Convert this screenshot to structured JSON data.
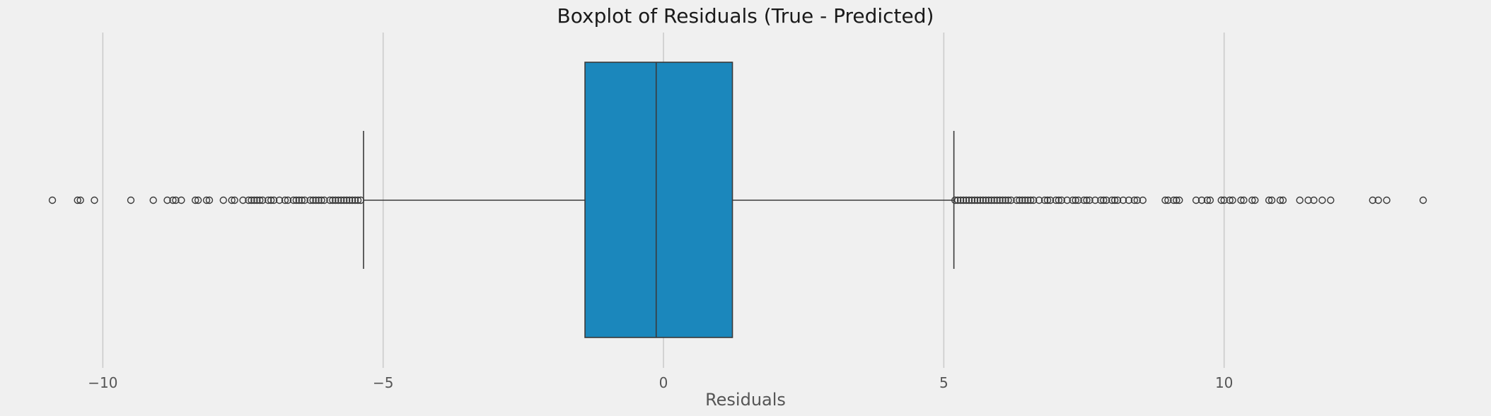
{
  "chart_data": {
    "type": "boxplot",
    "title": "Boxplot of Residuals (True - Predicted)",
    "xlabel": "Residuals",
    "ylabel": "",
    "xlim": [
      -10.85,
      13.65
    ],
    "xticks": [
      -10,
      -5,
      0,
      5,
      10
    ],
    "tick_labels": [
      "−10",
      "−5",
      "0",
      "5",
      "10"
    ],
    "grid": true,
    "colors": {
      "box_fill": "#1b87bc",
      "edge": "#3a3a3a",
      "grid": "#cbcbcb",
      "background": "#f0f0f0"
    },
    "box": {
      "q1": -1.4,
      "median": -0.13,
      "q3": 1.23,
      "whisker_low": -5.35,
      "whisker_high": 5.18
    },
    "outliers_low": [
      -10.9,
      -10.45,
      -10.4,
      -10.15,
      -9.5,
      -9.1,
      -8.85,
      -8.75,
      -8.7,
      -8.6,
      -8.35,
      -8.3,
      -8.15,
      -8.1,
      -7.85,
      -7.7,
      -7.65,
      -7.5,
      -7.4,
      -7.35,
      -7.3,
      -7.25,
      -7.2,
      -7.15,
      -7.05,
      -7.0,
      -6.95,
      -6.85,
      -6.75,
      -6.7,
      -6.6,
      -6.55,
      -6.5,
      -6.45,
      -6.4,
      -6.3,
      -6.25,
      -6.2,
      -6.15,
      -6.1,
      -6.05,
      -5.95,
      -5.9,
      -5.85,
      -5.8,
      -5.75,
      -5.7,
      -5.65,
      -5.6,
      -5.55,
      -5.5,
      -5.45,
      -5.4
    ],
    "outliers_high": [
      5.2,
      5.25,
      5.3,
      5.35,
      5.4,
      5.45,
      5.5,
      5.55,
      5.6,
      5.65,
      5.7,
      5.75,
      5.8,
      5.85,
      5.9,
      5.95,
      6.0,
      6.05,
      6.1,
      6.15,
      6.2,
      6.3,
      6.35,
      6.4,
      6.45,
      6.5,
      6.55,
      6.6,
      6.7,
      6.8,
      6.85,
      6.9,
      7.0,
      7.05,
      7.1,
      7.2,
      7.3,
      7.35,
      7.4,
      7.5,
      7.55,
      7.6,
      7.7,
      7.8,
      7.85,
      7.9,
      8.0,
      8.05,
      8.1,
      8.2,
      8.3,
      8.4,
      8.45,
      8.55,
      8.95,
      9.0,
      9.1,
      9.15,
      9.2,
      9.5,
      9.6,
      9.7,
      9.75,
      9.95,
      10.0,
      10.1,
      10.15,
      10.3,
      10.35,
      10.5,
      10.55,
      10.8,
      10.85,
      11.0,
      11.05,
      11.35,
      11.5,
      11.6,
      11.75,
      11.9,
      12.65,
      12.75,
      12.9,
      13.55
    ]
  }
}
